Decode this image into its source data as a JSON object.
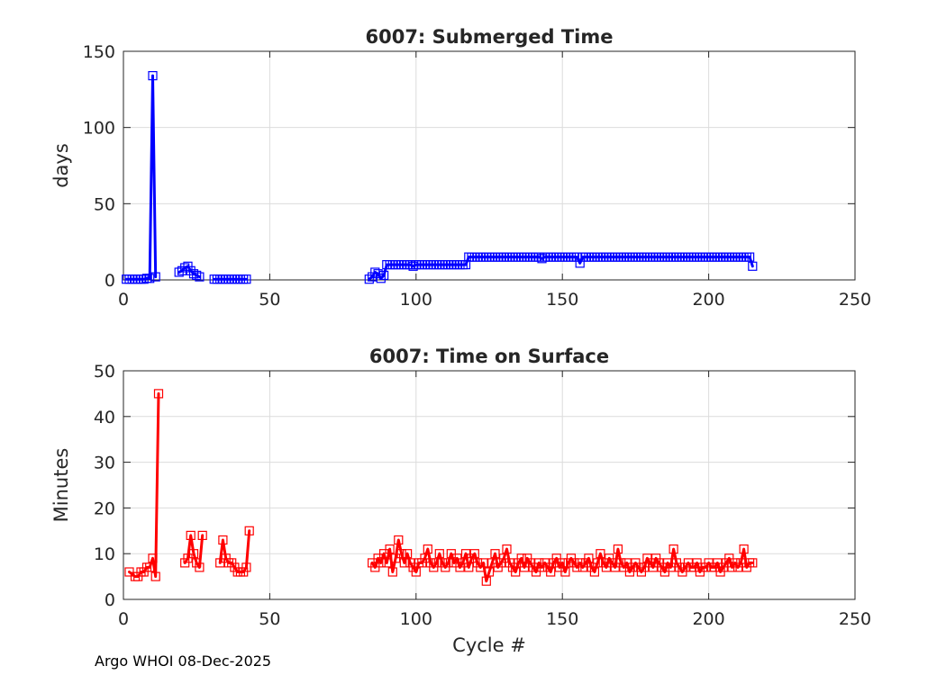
{
  "footer": {
    "credit": "Argo WHOI 08-Dec-2025"
  },
  "chart_data": [
    {
      "type": "line",
      "title": "6007: Submerged Time",
      "xlabel": "",
      "ylabel": "days",
      "xlim": [
        0,
        250
      ],
      "ylim": [
        0,
        150
      ],
      "xticks": [
        "0",
        "50",
        "100",
        "150",
        "200",
        "250"
      ],
      "yticks": [
        "0",
        "50",
        "100",
        "150"
      ],
      "grid": true,
      "color": "#0000ff",
      "marker": "square",
      "segments": [
        [
          [
            1,
            0.5
          ],
          [
            2,
            0.5
          ],
          [
            3,
            0.5
          ],
          [
            4,
            0.5
          ],
          [
            5,
            0.5
          ],
          [
            6,
            0.5
          ],
          [
            7,
            0.5
          ],
          [
            8,
            1
          ],
          [
            9,
            1
          ],
          [
            10,
            134
          ],
          [
            11,
            2
          ]
        ],
        [
          [
            19,
            5
          ],
          [
            20,
            6
          ],
          [
            21,
            8
          ],
          [
            22,
            9
          ],
          [
            23,
            6
          ],
          [
            24,
            4
          ],
          [
            25,
            3
          ],
          [
            26,
            2
          ]
        ],
        [
          [
            31,
            0.5
          ],
          [
            32,
            0.5
          ],
          [
            33,
            0.5
          ],
          [
            34,
            0.5
          ],
          [
            35,
            0.5
          ],
          [
            36,
            0.5
          ],
          [
            37,
            0.5
          ],
          [
            38,
            0.5
          ],
          [
            39,
            0.5
          ],
          [
            40,
            0.5
          ],
          [
            41,
            0.5
          ],
          [
            42,
            0.5
          ]
        ],
        [
          [
            84,
            0.5
          ],
          [
            85,
            2
          ],
          [
            86,
            5
          ],
          [
            87,
            4
          ],
          [
            88,
            1
          ],
          [
            89,
            3
          ],
          [
            90,
            10
          ],
          [
            91,
            10
          ],
          [
            92,
            10
          ],
          [
            93,
            10
          ],
          [
            94,
            10
          ],
          [
            95,
            10
          ],
          [
            96,
            10
          ],
          [
            97,
            10
          ],
          [
            98,
            10
          ],
          [
            99,
            9
          ],
          [
            100,
            10
          ],
          [
            101,
            10
          ],
          [
            102,
            10
          ],
          [
            103,
            10
          ],
          [
            104,
            10
          ],
          [
            105,
            10
          ],
          [
            106,
            10
          ],
          [
            107,
            10
          ],
          [
            108,
            10
          ],
          [
            109,
            10
          ],
          [
            110,
            10
          ],
          [
            111,
            10
          ],
          [
            112,
            10
          ],
          [
            113,
            10
          ],
          [
            114,
            10
          ],
          [
            115,
            10
          ],
          [
            116,
            10
          ],
          [
            117,
            10
          ],
          [
            118,
            15
          ],
          [
            119,
            15
          ],
          [
            120,
            15
          ],
          [
            121,
            15
          ],
          [
            122,
            15
          ],
          [
            123,
            15
          ],
          [
            124,
            15
          ],
          [
            125,
            15
          ],
          [
            126,
            15
          ],
          [
            127,
            15
          ],
          [
            128,
            15
          ],
          [
            129,
            15
          ],
          [
            130,
            15
          ],
          [
            131,
            15
          ],
          [
            132,
            15
          ],
          [
            133,
            15
          ],
          [
            134,
            15
          ],
          [
            135,
            15
          ],
          [
            136,
            15
          ],
          [
            137,
            15
          ],
          [
            138,
            15
          ],
          [
            139,
            15
          ],
          [
            140,
            15
          ],
          [
            141,
            15
          ],
          [
            142,
            15
          ],
          [
            143,
            14
          ],
          [
            144,
            15
          ],
          [
            145,
            15
          ],
          [
            146,
            15
          ],
          [
            147,
            15
          ],
          [
            148,
            15
          ],
          [
            149,
            15
          ],
          [
            150,
            15
          ],
          [
            151,
            15
          ],
          [
            152,
            15
          ],
          [
            153,
            15
          ],
          [
            154,
            15
          ],
          [
            155,
            15
          ],
          [
            156,
            11
          ],
          [
            157,
            15
          ],
          [
            158,
            15
          ],
          [
            159,
            15
          ],
          [
            160,
            15
          ],
          [
            161,
            15
          ],
          [
            162,
            15
          ],
          [
            163,
            15
          ],
          [
            164,
            15
          ],
          [
            165,
            15
          ],
          [
            166,
            15
          ],
          [
            167,
            15
          ],
          [
            168,
            15
          ],
          [
            169,
            15
          ],
          [
            170,
            15
          ],
          [
            171,
            15
          ],
          [
            172,
            15
          ],
          [
            173,
            15
          ],
          [
            174,
            15
          ],
          [
            175,
            15
          ],
          [
            176,
            15
          ],
          [
            177,
            15
          ],
          [
            178,
            15
          ],
          [
            179,
            15
          ],
          [
            180,
            15
          ],
          [
            181,
            15
          ],
          [
            182,
            15
          ],
          [
            183,
            15
          ],
          [
            184,
            15
          ],
          [
            185,
            15
          ],
          [
            186,
            15
          ],
          [
            187,
            15
          ],
          [
            188,
            15
          ],
          [
            189,
            15
          ],
          [
            190,
            15
          ],
          [
            191,
            15
          ],
          [
            192,
            15
          ],
          [
            193,
            15
          ],
          [
            194,
            15
          ],
          [
            195,
            15
          ],
          [
            196,
            15
          ],
          [
            197,
            15
          ],
          [
            198,
            15
          ],
          [
            199,
            15
          ],
          [
            200,
            15
          ],
          [
            201,
            15
          ],
          [
            202,
            15
          ],
          [
            203,
            15
          ],
          [
            204,
            15
          ],
          [
            205,
            15
          ],
          [
            206,
            15
          ],
          [
            207,
            15
          ],
          [
            208,
            15
          ],
          [
            209,
            15
          ],
          [
            210,
            15
          ],
          [
            211,
            15
          ],
          [
            212,
            15
          ],
          [
            213,
            15
          ],
          [
            214,
            15
          ],
          [
            215,
            9
          ]
        ]
      ]
    },
    {
      "type": "line",
      "title": "6007: Time on Surface",
      "xlabel": "Cycle #",
      "ylabel": "Minutes",
      "xlim": [
        0,
        250
      ],
      "ylim": [
        0,
        50
      ],
      "xticks": [
        "0",
        "50",
        "100",
        "150",
        "200",
        "250"
      ],
      "yticks": [
        "0",
        "10",
        "20",
        "30",
        "40",
        "50"
      ],
      "grid": true,
      "color": "#ff0000",
      "marker": "square",
      "segments": [
        [
          [
            2,
            6
          ],
          [
            4,
            5
          ],
          [
            5,
            5
          ],
          [
            6,
            6
          ],
          [
            7,
            6
          ],
          [
            8,
            7
          ],
          [
            9,
            7
          ],
          [
            10,
            9
          ],
          [
            11,
            5
          ],
          [
            12,
            45
          ]
        ],
        [
          [
            21,
            8
          ],
          [
            22,
            9
          ],
          [
            23,
            14
          ],
          [
            24,
            10
          ],
          [
            25,
            8
          ],
          [
            26,
            7
          ],
          [
            27,
            14
          ]
        ],
        [
          [
            33,
            8
          ],
          [
            34,
            13
          ],
          [
            35,
            9
          ],
          [
            36,
            8
          ],
          [
            37,
            8
          ],
          [
            38,
            7
          ],
          [
            39,
            6
          ],
          [
            40,
            6
          ],
          [
            41,
            6
          ],
          [
            42,
            7
          ],
          [
            43,
            15
          ]
        ],
        [
          [
            85,
            8
          ],
          [
            86,
            7
          ],
          [
            87,
            9
          ],
          [
            88,
            8
          ],
          [
            89,
            10
          ],
          [
            90,
            8
          ],
          [
            91,
            11
          ],
          [
            92,
            6
          ],
          [
            93,
            9
          ],
          [
            94,
            13
          ],
          [
            95,
            10
          ],
          [
            96,
            8
          ],
          [
            97,
            10
          ],
          [
            98,
            8
          ],
          [
            99,
            7
          ],
          [
            100,
            6
          ],
          [
            101,
            8
          ],
          [
            102,
            8
          ],
          [
            103,
            9
          ],
          [
            104,
            11
          ],
          [
            105,
            8
          ],
          [
            106,
            7
          ],
          [
            107,
            8
          ],
          [
            108,
            10
          ],
          [
            109,
            8
          ],
          [
            110,
            7
          ],
          [
            111,
            8
          ],
          [
            112,
            10
          ],
          [
            113,
            8
          ],
          [
            114,
            9
          ],
          [
            115,
            7
          ],
          [
            116,
            8
          ],
          [
            117,
            10
          ],
          [
            118,
            7
          ],
          [
            119,
            9
          ],
          [
            120,
            10
          ],
          [
            121,
            8
          ],
          [
            122,
            7
          ],
          [
            123,
            8
          ],
          [
            124,
            4
          ],
          [
            125,
            6
          ],
          [
            126,
            8
          ],
          [
            127,
            10
          ],
          [
            128,
            7
          ],
          [
            129,
            8
          ],
          [
            130,
            9
          ],
          [
            131,
            11
          ],
          [
            132,
            8
          ],
          [
            133,
            7
          ],
          [
            134,
            6
          ],
          [
            135,
            8
          ],
          [
            136,
            9
          ],
          [
            137,
            7
          ],
          [
            138,
            9
          ],
          [
            139,
            8
          ],
          [
            140,
            7
          ],
          [
            141,
            6
          ],
          [
            142,
            8
          ],
          [
            143,
            7
          ],
          [
            144,
            8
          ],
          [
            145,
            7
          ],
          [
            146,
            6
          ],
          [
            147,
            8
          ],
          [
            148,
            9
          ],
          [
            149,
            7
          ],
          [
            150,
            8
          ],
          [
            151,
            6
          ],
          [
            152,
            8
          ],
          [
            153,
            9
          ],
          [
            154,
            8
          ],
          [
            155,
            7
          ],
          [
            156,
            8
          ],
          [
            157,
            7
          ],
          [
            158,
            8
          ],
          [
            159,
            9
          ],
          [
            160,
            7
          ],
          [
            161,
            6
          ],
          [
            162,
            8
          ],
          [
            163,
            10
          ],
          [
            164,
            8
          ],
          [
            165,
            7
          ],
          [
            166,
            9
          ],
          [
            167,
            8
          ],
          [
            168,
            7
          ],
          [
            169,
            11
          ],
          [
            170,
            8
          ],
          [
            171,
            7
          ],
          [
            172,
            8
          ],
          [
            173,
            6
          ],
          [
            174,
            7
          ],
          [
            175,
            8
          ],
          [
            176,
            7
          ],
          [
            177,
            6
          ],
          [
            178,
            7
          ],
          [
            179,
            9
          ],
          [
            180,
            8
          ],
          [
            181,
            7
          ],
          [
            182,
            9
          ],
          [
            183,
            8
          ],
          [
            184,
            7
          ],
          [
            185,
            6
          ],
          [
            186,
            8
          ],
          [
            187,
            7
          ],
          [
            188,
            11
          ],
          [
            189,
            8
          ],
          [
            190,
            7
          ],
          [
            191,
            6
          ],
          [
            192,
            7
          ],
          [
            193,
            8
          ],
          [
            194,
            7
          ],
          [
            195,
            7
          ],
          [
            196,
            8
          ],
          [
            197,
            6
          ],
          [
            198,
            7
          ],
          [
            199,
            7
          ],
          [
            200,
            8
          ],
          [
            201,
            7
          ],
          [
            202,
            7
          ],
          [
            203,
            8
          ],
          [
            204,
            6
          ],
          [
            205,
            7
          ],
          [
            206,
            8
          ],
          [
            207,
            9
          ],
          [
            208,
            7
          ],
          [
            209,
            8
          ],
          [
            210,
            7
          ],
          [
            211,
            8
          ],
          [
            212,
            11
          ],
          [
            213,
            7
          ],
          [
            214,
            8
          ],
          [
            215,
            8
          ]
        ]
      ]
    }
  ]
}
